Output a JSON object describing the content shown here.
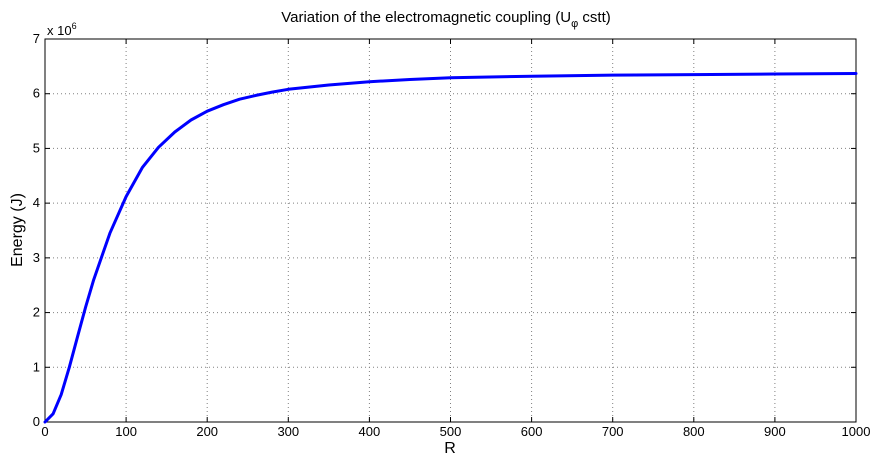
{
  "chart_data": {
    "type": "line",
    "title_main": "Variation of the electromagnetic coupling (U",
    "title_sub": "φ",
    "title_end": " cstt)",
    "xlabel": "R",
    "ylabel": "Energy (J)",
    "y_multiplier_base": "x 10",
    "y_multiplier_exp": "6",
    "xlim": [
      0,
      1000
    ],
    "ylim": [
      0,
      7
    ],
    "grid": true,
    "x_ticks": [
      0,
      100,
      200,
      300,
      400,
      500,
      600,
      700,
      800,
      900,
      1000
    ],
    "y_ticks": [
      0,
      1,
      2,
      3,
      4,
      5,
      6,
      7
    ],
    "series": [
      {
        "color": "#0000ff",
        "x": [
          0,
          10,
          20,
          30,
          40,
          50,
          60,
          80,
          100,
          120,
          140,
          160,
          180,
          200,
          220,
          240,
          260,
          280,
          300,
          350,
          400,
          450,
          500,
          600,
          700,
          800,
          900,
          1000
        ],
        "y": [
          0,
          0.15,
          0.5,
          1.0,
          1.55,
          2.1,
          2.6,
          3.45,
          4.12,
          4.65,
          5.02,
          5.3,
          5.52,
          5.68,
          5.8,
          5.9,
          5.97,
          6.03,
          6.08,
          6.16,
          6.22,
          6.26,
          6.29,
          6.32,
          6.34,
          6.35,
          6.36,
          6.37
        ]
      }
    ]
  }
}
